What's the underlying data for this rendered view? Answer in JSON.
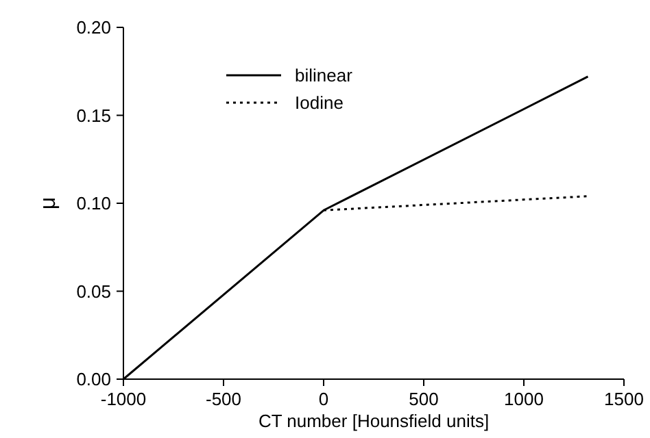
{
  "chart_data": {
    "type": "line",
    "xlabel": "CT number [Hounsfield units]",
    "ylabel": "μ",
    "xlim": [
      -1000,
      1500
    ],
    "xticks": [
      -1000,
      -500,
      0,
      500,
      1000,
      1500
    ],
    "ylim": [
      0,
      0.2
    ],
    "yticks": [
      {
        "value": 0,
        "label": "0.00"
      },
      {
        "value": 0.05,
        "label": "0.05"
      },
      {
        "value": 0.1,
        "label": "0.10"
      },
      {
        "value": 0.15,
        "label": "0.15"
      },
      {
        "value": 0.2,
        "label": "0.20"
      }
    ],
    "grid": false,
    "legend": "top left",
    "marker": "none",
    "series": [
      {
        "name": "bilinear",
        "color": "#000000",
        "line_style": "solid",
        "x": [
          -1000,
          0,
          1320
        ],
        "values": [
          0,
          0.096,
          0.172
        ]
      },
      {
        "name": "Iodine",
        "color": "#000000",
        "line_style": "dotted",
        "x": [
          0,
          1320
        ],
        "values": [
          0.096,
          0.104
        ]
      }
    ]
  }
}
